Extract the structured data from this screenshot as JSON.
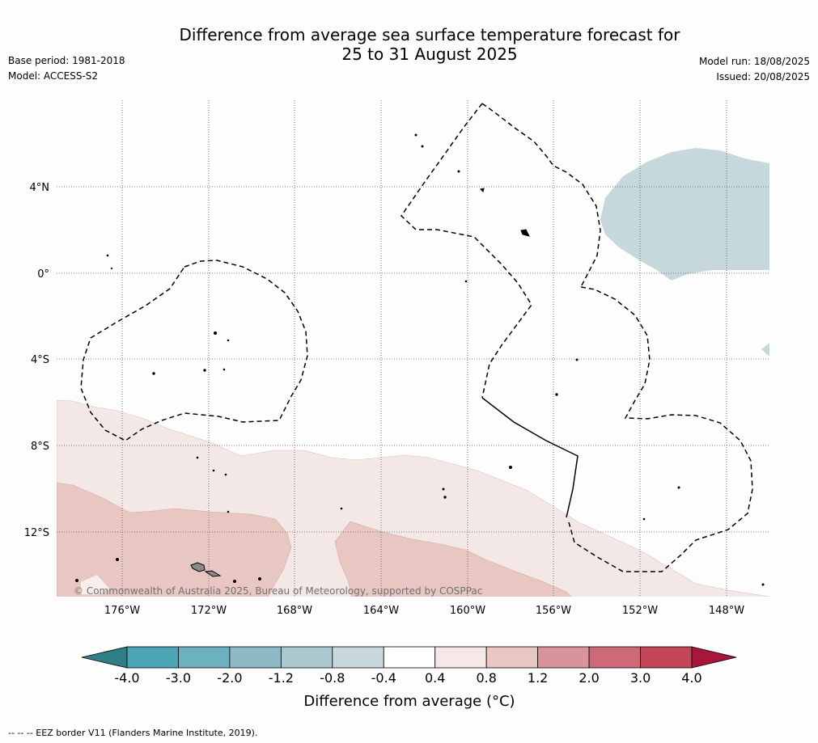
{
  "title": {
    "line1": "Difference from average sea surface temperature forecast for",
    "line2": "25 to 31 August 2025"
  },
  "meta": {
    "base_period": "Base period: 1981-2018",
    "model": "Model: ACCESS-S2",
    "model_run": "Model run: 18/08/2025",
    "issued": "Issued: 20/08/2025"
  },
  "map": {
    "lon_labels": [
      "176°W",
      "172°W",
      "168°W",
      "164°W",
      "160°W",
      "156°W",
      "152°W",
      "148°W"
    ],
    "lat_labels": [
      "4°N",
      "0°",
      "4°S",
      "8°S",
      "12°S"
    ],
    "copyright": "© Commonwealth of Australia 2025, Bureau of Meteorology, supported by COSPPac"
  },
  "colorbar": {
    "ticks": [
      "-4.0",
      "-3.0",
      "-2.0",
      "-1.2",
      "-0.8",
      "-0.4",
      "0.4",
      "0.8",
      "1.2",
      "2.0",
      "3.0",
      "4.0"
    ],
    "colors": [
      "#2f7f87",
      "#4aa4b3",
      "#6db0be",
      "#8fbac5",
      "#adc9d0",
      "#c8d9de",
      "#ffffff",
      "#f6e8e6",
      "#e8c6c1",
      "#d9939a",
      "#cc6b77",
      "#c24558",
      "#a8173a"
    ],
    "label": "Difference from average (°C)"
  },
  "footer": {
    "legend": "--  --  -- EEZ border V11 (Flanders Marine Institute, 2019)."
  }
}
